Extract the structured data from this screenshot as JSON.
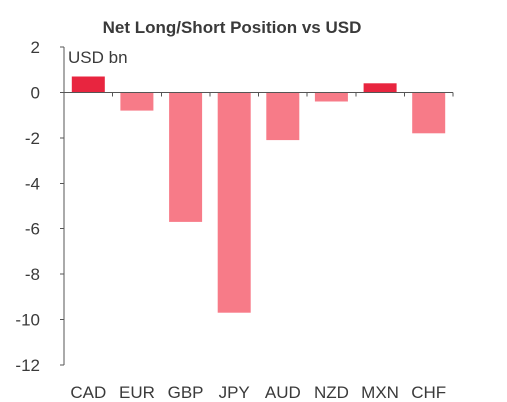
{
  "chart_data": {
    "type": "bar",
    "title": "Net Long/Short Position vs USD",
    "unit_label": "USD bn",
    "categories": [
      "CAD",
      "EUR",
      "GBP",
      "JPY",
      "AUD",
      "NZD",
      "MXN",
      "CHF"
    ],
    "values": [
      0.7,
      -0.8,
      -5.7,
      -9.7,
      -2.1,
      -0.4,
      0.4,
      -1.8
    ],
    "ylim": [
      -12,
      2
    ],
    "yticks": [
      2,
      0,
      -2,
      -4,
      -6,
      -8,
      -10,
      -12
    ],
    "grid": false,
    "colors": {
      "positive": "#e8253f",
      "negative": "#f77b88"
    }
  }
}
